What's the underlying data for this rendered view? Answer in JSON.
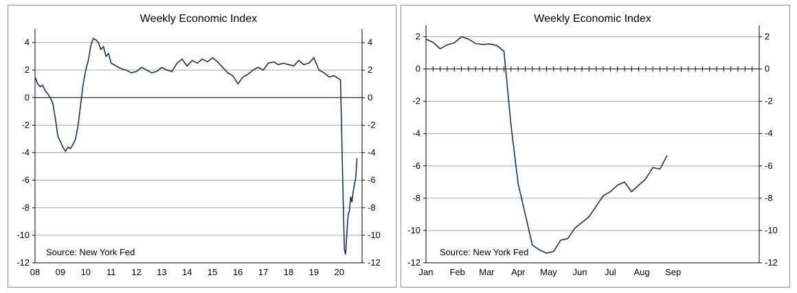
{
  "chart_data": [
    {
      "type": "line",
      "title": "Weekly Economic Index",
      "annotation": "Source: New York Fed",
      "xlabel": "",
      "ylabel": "",
      "ylim": [
        -12,
        5
      ],
      "yticks": [
        -12,
        -10,
        -8,
        -6,
        -4,
        -2,
        0,
        2,
        4
      ],
      "xlim": [
        2008.0,
        2020.9
      ],
      "xticks": [
        {
          "label": "08",
          "x": 2008.0
        },
        {
          "label": "09",
          "x": 2009.0
        },
        {
          "label": "10",
          "x": 2010.0
        },
        {
          "label": "11",
          "x": 2011.0
        },
        {
          "label": "12",
          "x": 2012.0
        },
        {
          "label": "13",
          "x": 2013.0
        },
        {
          "label": "14",
          "x": 2014.0
        },
        {
          "label": "15",
          "x": 2015.0
        },
        {
          "label": "16",
          "x": 2016.0
        },
        {
          "label": "17",
          "x": 2017.0
        },
        {
          "label": "18",
          "x": 2018.0
        },
        {
          "label": "19",
          "x": 2019.0
        },
        {
          "label": "20",
          "x": 2020.0
        }
      ],
      "grid": true,
      "legend": "none",
      "line_color": "#16324f",
      "series": [
        {
          "x": [
            2008.0,
            2008.1,
            2008.2,
            2008.3,
            2008.4,
            2008.5,
            2008.6,
            2008.7,
            2008.8,
            2008.9,
            2009.0,
            2009.1,
            2009.2,
            2009.3,
            2009.4,
            2009.5,
            2009.6,
            2009.7,
            2009.8,
            2009.9,
            2010.0,
            2010.1,
            2010.2,
            2010.3,
            2010.4,
            2010.5,
            2010.6,
            2010.7,
            2010.8,
            2010.9,
            2011.0,
            2011.2,
            2011.4,
            2011.6,
            2011.8,
            2012.0,
            2012.2,
            2012.4,
            2012.6,
            2012.8,
            2013.0,
            2013.2,
            2013.4,
            2013.6,
            2013.8,
            2014.0,
            2014.2,
            2014.4,
            2014.6,
            2014.8,
            2015.0,
            2015.2,
            2015.4,
            2015.6,
            2015.8,
            2016.0,
            2016.2,
            2016.4,
            2016.6,
            2016.8,
            2017.0,
            2017.2,
            2017.4,
            2017.6,
            2017.8,
            2018.0,
            2018.2,
            2018.4,
            2018.6,
            2018.8,
            2019.0,
            2019.2,
            2019.4,
            2019.6,
            2019.8,
            2019.95,
            2020.05,
            2020.1,
            2020.15,
            2020.2,
            2020.25,
            2020.3,
            2020.35,
            2020.4,
            2020.45,
            2020.5,
            2020.55,
            2020.6,
            2020.65,
            2020.7
          ],
          "y": [
            1.5,
            1.0,
            0.8,
            0.9,
            0.5,
            0.3,
            0.0,
            -0.4,
            -1.5,
            -2.8,
            -3.2,
            -3.6,
            -3.9,
            -3.6,
            -3.7,
            -3.4,
            -3.0,
            -2.0,
            -0.5,
            1.0,
            2.0,
            2.7,
            3.8,
            4.3,
            4.2,
            4.0,
            3.5,
            3.7,
            3.0,
            3.2,
            2.5,
            2.3,
            2.1,
            2.0,
            1.8,
            1.9,
            2.2,
            2.0,
            1.8,
            1.9,
            2.2,
            2.0,
            1.9,
            2.5,
            2.8,
            2.3,
            2.7,
            2.5,
            2.8,
            2.6,
            2.9,
            2.6,
            2.2,
            1.8,
            1.6,
            1.0,
            1.5,
            1.7,
            2.0,
            2.2,
            2.0,
            2.5,
            2.6,
            2.4,
            2.5,
            2.4,
            2.3,
            2.7,
            2.4,
            2.5,
            2.9,
            2.0,
            1.8,
            1.5,
            1.6,
            1.4,
            1.3,
            -3.0,
            -7.0,
            -11.0,
            -11.4,
            -9.8,
            -8.5,
            -8.2,
            -7.2,
            -7.6,
            -6.8,
            -6.3,
            -5.8,
            -4.4
          ]
        }
      ]
    },
    {
      "type": "line",
      "title": "Weekly Economic Index",
      "annotation": "Source: New York Fed",
      "xlabel": "",
      "ylabel": "",
      "ylim": [
        -12,
        2.7
      ],
      "yticks": [
        -12,
        -10,
        -8,
        -6,
        -4,
        -2,
        0,
        2
      ],
      "xlim": [
        0,
        47
      ],
      "xticks": [
        {
          "label": "Jan",
          "x": 0
        },
        {
          "label": "Feb",
          "x": 4.43
        },
        {
          "label": "Mar",
          "x": 8.57
        },
        {
          "label": "Apr",
          "x": 13.0
        },
        {
          "label": "May",
          "x": 17.29
        },
        {
          "label": "Jun",
          "x": 21.71
        },
        {
          "label": "Jul",
          "x": 26.0
        },
        {
          "label": "Aug",
          "x": 30.43
        },
        {
          "label": "Sep",
          "x": 34.86
        }
      ],
      "grid": true,
      "legend": "none",
      "line_color": "#16324f",
      "series": [
        {
          "x": [
            0,
            1,
            2,
            3,
            4,
            5,
            6,
            7,
            8,
            9,
            10,
            11,
            12,
            13,
            14,
            15,
            16,
            17,
            18,
            19,
            20,
            21,
            22,
            23,
            24,
            25,
            26,
            27,
            28,
            29,
            30,
            31,
            32,
            33,
            34
          ],
          "y": [
            1.85,
            1.65,
            1.25,
            1.5,
            1.62,
            2.0,
            1.85,
            1.58,
            1.52,
            1.55,
            1.45,
            1.1,
            -3.5,
            -7.1,
            -9.0,
            -10.9,
            -11.2,
            -11.4,
            -11.3,
            -10.6,
            -10.5,
            -9.85,
            -9.5,
            -9.15,
            -8.5,
            -7.85,
            -7.6,
            -7.2,
            -7.0,
            -7.6,
            -7.2,
            -6.8,
            -6.1,
            -6.2,
            -5.35
          ]
        }
      ]
    }
  ]
}
